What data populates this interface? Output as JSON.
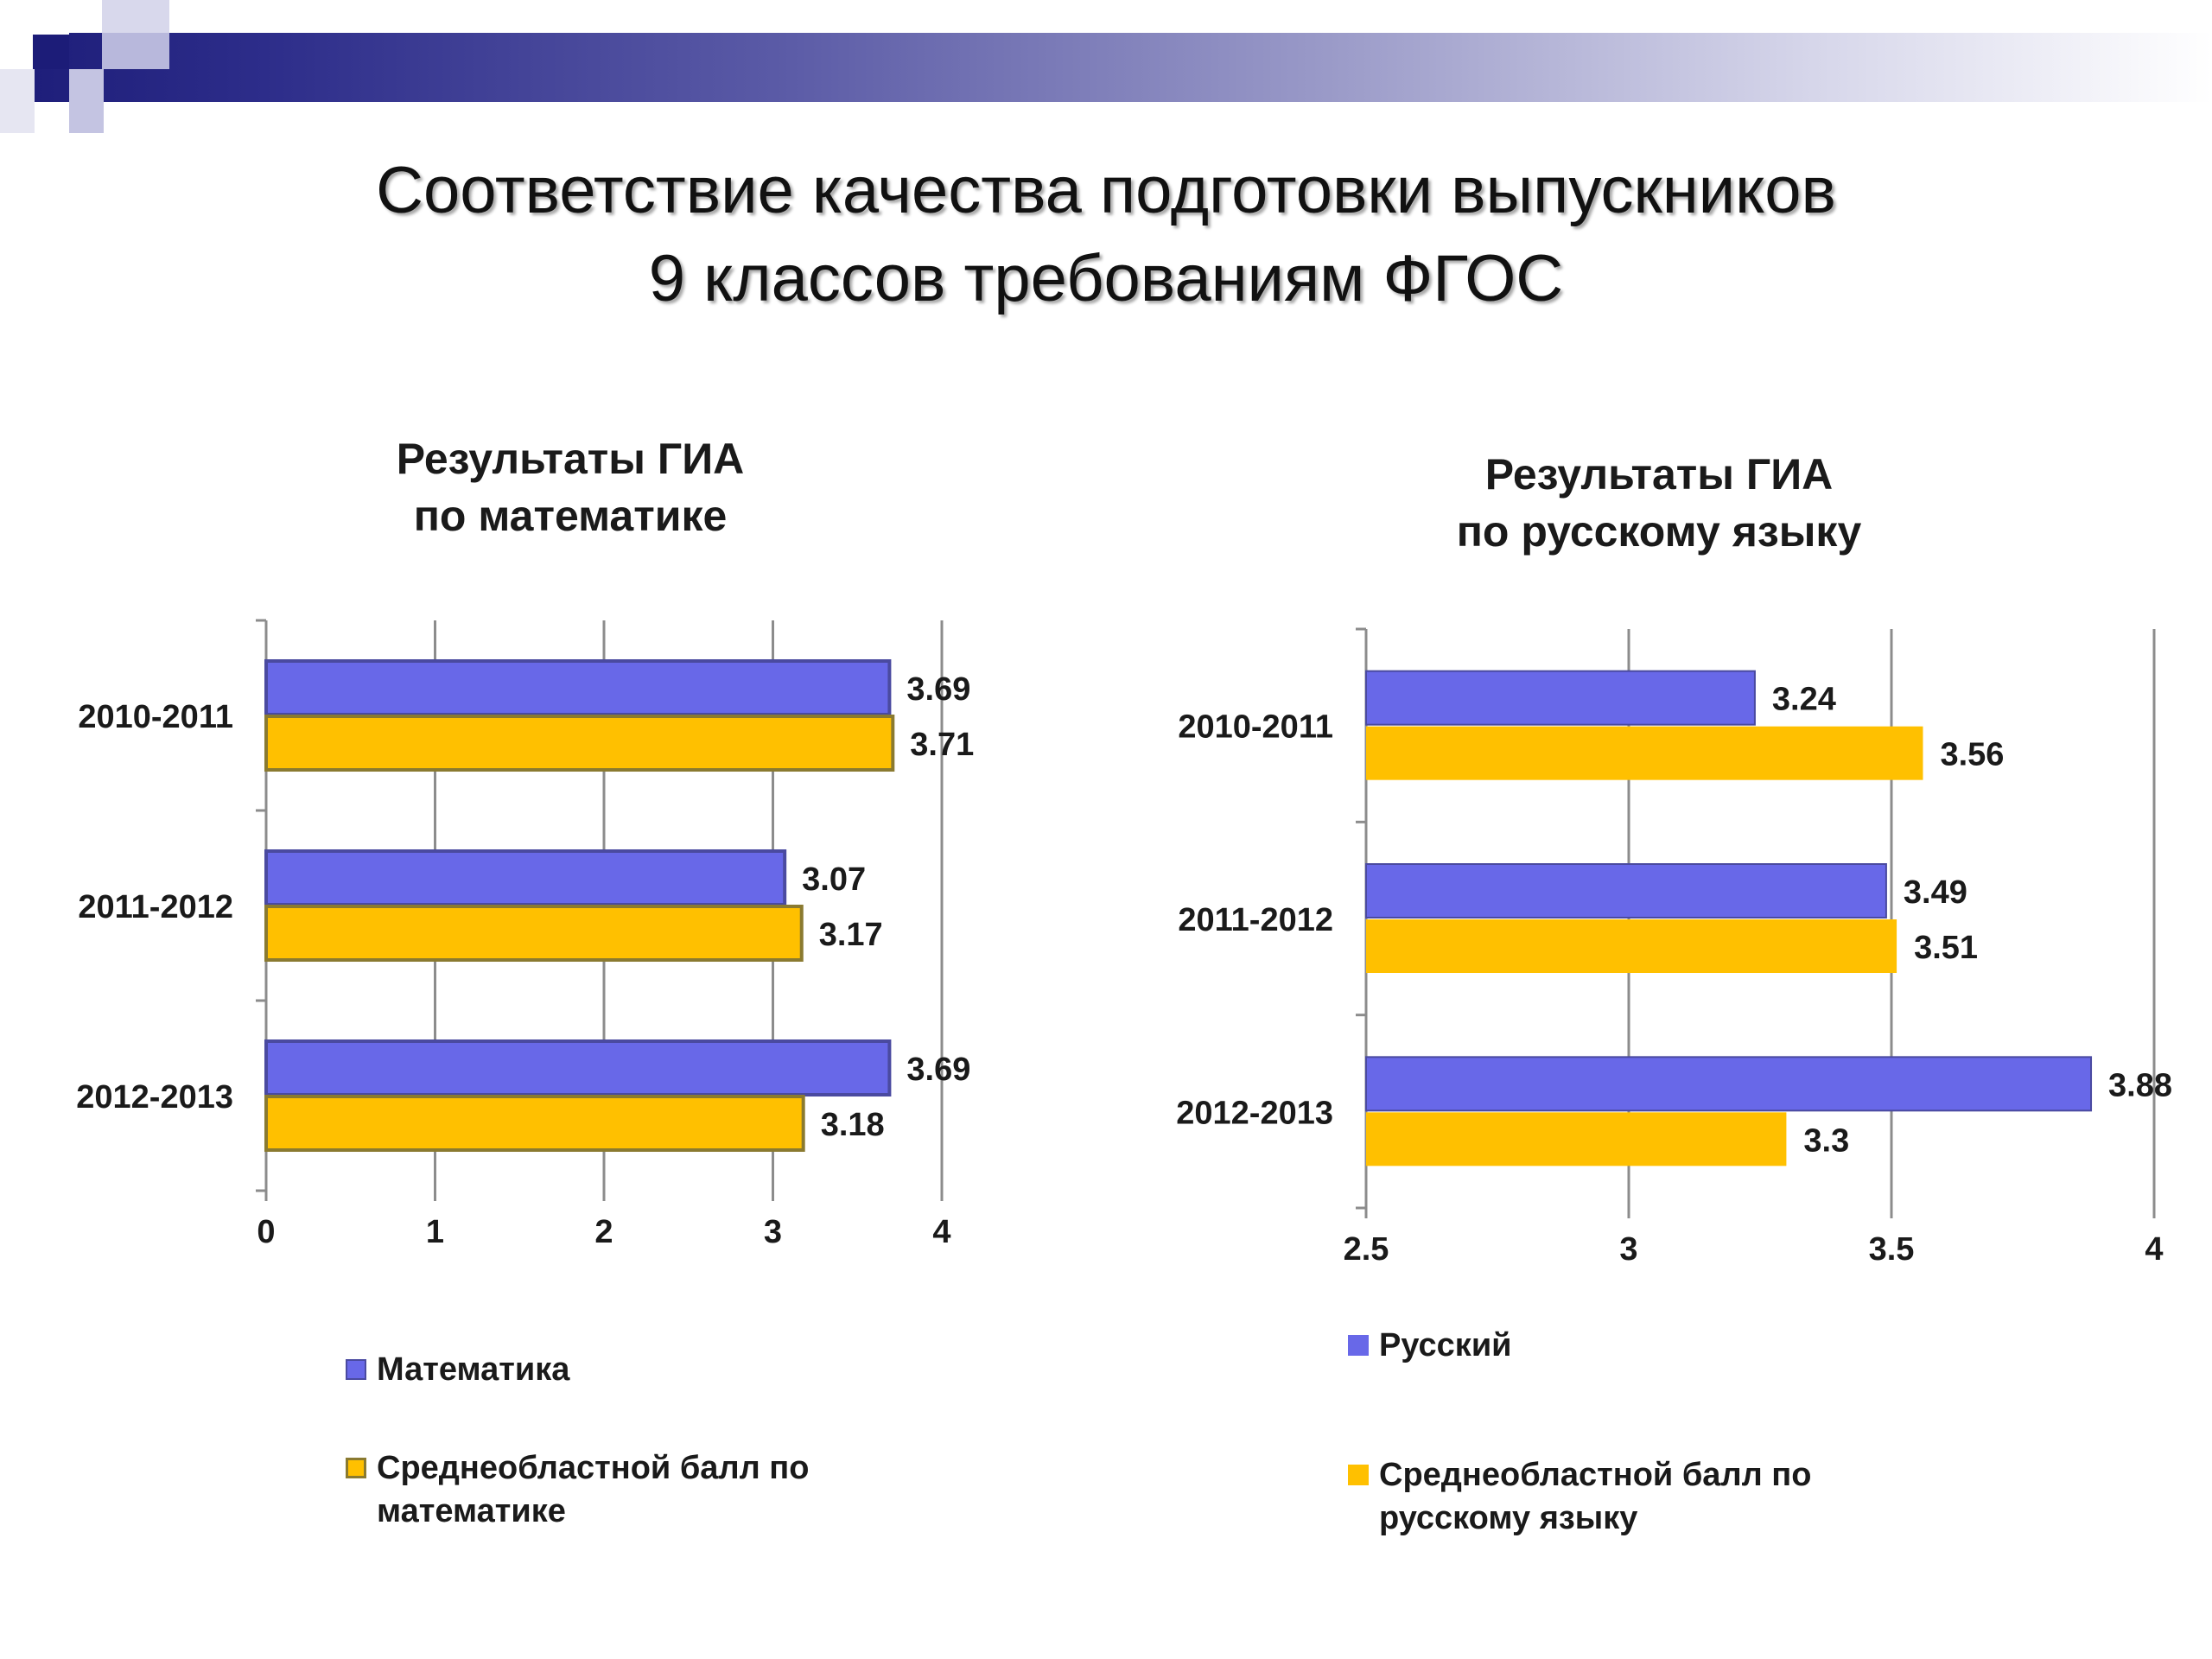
{
  "slide": {
    "title_line1": "Соответствие качества подготовки выпускников",
    "title_line2": "9 классов требованиям ФГОС"
  },
  "colors": {
    "school": "#6868e8",
    "school_border": "#4a4aa0",
    "region": "#ffc000",
    "region_border": "#8a7a30"
  },
  "chart_data": [
    {
      "type": "bar",
      "orientation": "horizontal",
      "title_line1": "Результаты ГИА",
      "title_line2": "по математике",
      "categories": [
        "2010-2011",
        "2011-2012",
        "2012-2013"
      ],
      "series": [
        {
          "name": "Математика",
          "values": [
            3.69,
            3.07,
            3.69
          ]
        },
        {
          "name": "Среднеобластной балл по математике",
          "values": [
            3.71,
            3.17,
            3.18
          ]
        }
      ],
      "value_labels": [
        [
          "3.69",
          "3.07",
          "3.69"
        ],
        [
          "3.71",
          "3.17",
          "3.18"
        ]
      ],
      "xlim": [
        0,
        4
      ],
      "xticks": [
        "0",
        "1",
        "2",
        "3",
        "4"
      ],
      "grid": true,
      "legend_position": "bottom"
    },
    {
      "type": "bar",
      "orientation": "horizontal",
      "title_line1": "Результаты ГИА",
      "title_line2": "по русскому языку",
      "categories": [
        "2010-2011",
        "2011-2012",
        "2012-2013"
      ],
      "series": [
        {
          "name": "Русский",
          "values": [
            3.24,
            3.49,
            3.88
          ]
        },
        {
          "name": "Среднеобластной балл по русскому языку",
          "values": [
            3.56,
            3.51,
            3.3
          ]
        }
      ],
      "value_labels": [
        [
          "3.24",
          "3.49",
          "3.88"
        ],
        [
          "3.56",
          "3.51",
          "3.3"
        ]
      ],
      "xlim": [
        2.5,
        4
      ],
      "xticks": [
        "2.5",
        "3",
        "3.5",
        "4"
      ],
      "grid": true,
      "legend_position": "bottom"
    }
  ]
}
